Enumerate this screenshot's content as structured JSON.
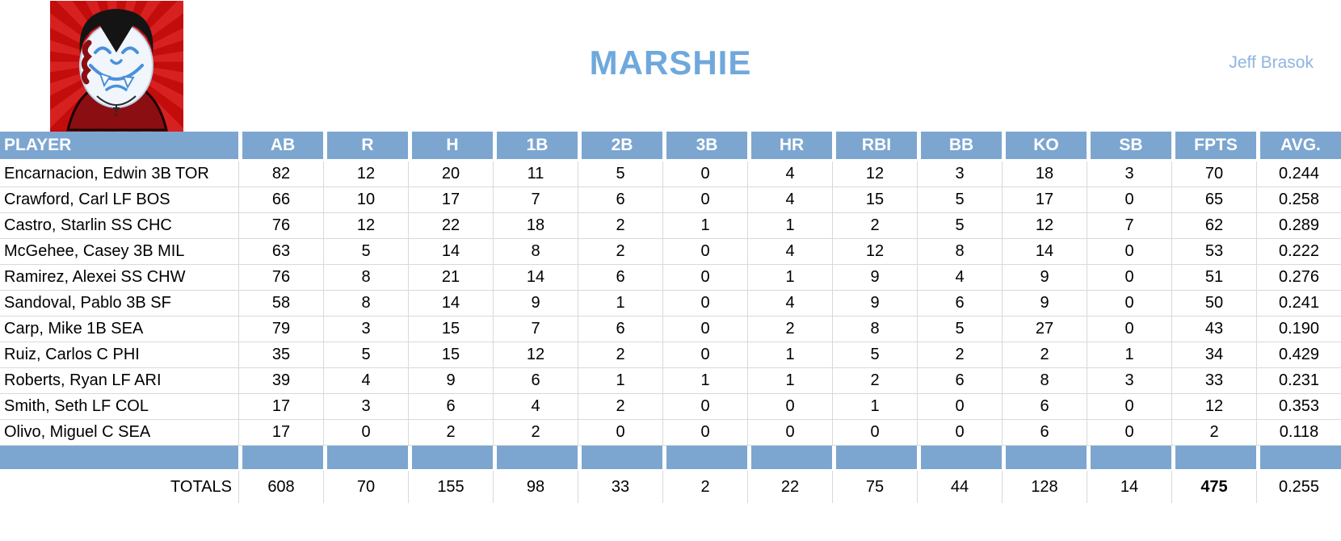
{
  "page": {
    "title": "MARSHIE",
    "owner": "Jeff Brasok"
  },
  "colors": {
    "accent_blue": "#7CA6D0",
    "title_blue": "#6FA8DC",
    "owner_blue": "#8FB5E1",
    "grid_gray": "#D9D9D9",
    "logo_red": "#C30D0D",
    "logo_ray_red": "#D72121",
    "cape_maroon": "#8B0E12",
    "face_blue_line": "#4A90D9"
  },
  "logo": {
    "icon": "vampire-mascot"
  },
  "table": {
    "columns": [
      "PLAYER",
      "AB",
      "R",
      "H",
      "1B",
      "2B",
      "3B",
      "HR",
      "RBI",
      "BB",
      "KO",
      "SB",
      "FPTS",
      "AVG."
    ],
    "rows": [
      {
        "player": "Encarnacion, Edwin 3B TOR",
        "stats": [
          "82",
          "12",
          "20",
          "11",
          "5",
          "0",
          "4",
          "12",
          "3",
          "18",
          "3",
          "70",
          "0.244"
        ]
      },
      {
        "player": "Crawford, Carl LF BOS",
        "stats": [
          "66",
          "10",
          "17",
          "7",
          "6",
          "0",
          "4",
          "15",
          "5",
          "17",
          "0",
          "65",
          "0.258"
        ]
      },
      {
        "player": "Castro, Starlin SS CHC",
        "stats": [
          "76",
          "12",
          "22",
          "18",
          "2",
          "1",
          "1",
          "2",
          "5",
          "12",
          "7",
          "62",
          "0.289"
        ]
      },
      {
        "player": "McGehee, Casey 3B MIL",
        "stats": [
          "63",
          "5",
          "14",
          "8",
          "2",
          "0",
          "4",
          "12",
          "8",
          "14",
          "0",
          "53",
          "0.222"
        ]
      },
      {
        "player": "Ramirez, Alexei SS CHW",
        "stats": [
          "76",
          "8",
          "21",
          "14",
          "6",
          "0",
          "1",
          "9",
          "4",
          "9",
          "0",
          "51",
          "0.276"
        ]
      },
      {
        "player": "Sandoval, Pablo 3B SF",
        "stats": [
          "58",
          "8",
          "14",
          "9",
          "1",
          "0",
          "4",
          "9",
          "6",
          "9",
          "0",
          "50",
          "0.241"
        ]
      },
      {
        "player": "Carp, Mike 1B SEA",
        "stats": [
          "79",
          "3",
          "15",
          "7",
          "6",
          "0",
          "2",
          "8",
          "5",
          "27",
          "0",
          "43",
          "0.190"
        ]
      },
      {
        "player": "Ruiz, Carlos C PHI",
        "stats": [
          "35",
          "5",
          "15",
          "12",
          "2",
          "0",
          "1",
          "5",
          "2",
          "2",
          "1",
          "34",
          "0.429"
        ]
      },
      {
        "player": "Roberts, Ryan LF ARI",
        "stats": [
          "39",
          "4",
          "9",
          "6",
          "1",
          "1",
          "1",
          "2",
          "6",
          "8",
          "3",
          "33",
          "0.231"
        ]
      },
      {
        "player": "Smith, Seth LF COL",
        "stats": [
          "17",
          "3",
          "6",
          "4",
          "2",
          "0",
          "0",
          "1",
          "0",
          "6",
          "0",
          "12",
          "0.353"
        ]
      },
      {
        "player": "Olivo, Miguel C SEA",
        "stats": [
          "17",
          "0",
          "2",
          "2",
          "0",
          "0",
          "0",
          "0",
          "0",
          "6",
          "0",
          "2",
          "0.118"
        ]
      }
    ],
    "totals": {
      "label": "TOTALS",
      "stats": [
        "608",
        "70",
        "155",
        "98",
        "33",
        "2",
        "22",
        "75",
        "44",
        "128",
        "14",
        "475",
        "0.255"
      ],
      "bold_index": 11
    }
  }
}
